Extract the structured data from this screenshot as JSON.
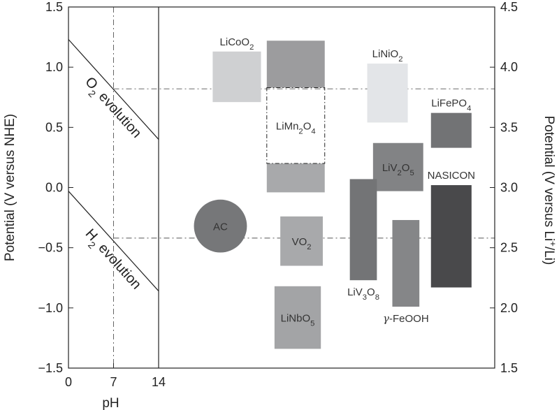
{
  "chart_data": {
    "type": "range_bar",
    "left_axis": {
      "label": "Potential (V versus NHE)",
      "range": [
        -1.5,
        1.5
      ],
      "ticks": [
        "−1.5",
        "−1.0",
        "−0.5",
        "0.0",
        "0.5",
        "1.0",
        "1.5"
      ],
      "tick_values": [
        -1.5,
        -1.0,
        -0.5,
        0.0,
        0.5,
        1.0,
        1.5
      ]
    },
    "right_axis": {
      "label_parts": [
        "Potential (V versus Li",
        "+",
        "/Li)"
      ],
      "range": [
        1.5,
        4.5
      ],
      "ticks": [
        "1.5",
        "2.0",
        "2.5",
        "3.0",
        "3.5",
        "4.0",
        "4.5"
      ],
      "tick_values": [
        1.5,
        2.0,
        2.5,
        3.0,
        3.5,
        4.0,
        4.5
      ]
    },
    "x_axis": {
      "label": "pH",
      "range": [
        0,
        14
      ],
      "ticks": [
        "0",
        "7",
        "14"
      ],
      "tick_values": [
        0,
        7,
        14
      ]
    },
    "reference_lines": {
      "pH_neutral": 7,
      "o2_evolution_potential_at_pH7": 0.82,
      "h2_evolution_potential_at_pH7": -0.42
    },
    "evolution_lines": [
      {
        "name": "O2 evolution",
        "label_parts": [
          "O",
          "2",
          " evolution"
        ],
        "from": [
          0,
          1.23
        ],
        "to": [
          14,
          0.4
        ]
      },
      {
        "name": "H2 evolution",
        "label_parts": [
          "H",
          "2",
          " evolution"
        ],
        "from": [
          0,
          -0.03
        ],
        "to": [
          14,
          -0.86
        ]
      }
    ],
    "materials": [
      {
        "name": "LiCoO2",
        "label_parts": [
          {
            "t": "LiCoO"
          },
          {
            "t": "2",
            "sub": true
          }
        ],
        "shape": "rect",
        "x_range": [
          2.8,
          5.3
        ],
        "y_range": [
          0.71,
          1.13
        ],
        "color": "#cfd0d2",
        "label_pos": "above"
      },
      {
        "name": "LiMn2O4 (upper)",
        "label_parts": [],
        "shape": "rect",
        "x_range": [
          5.6,
          8.6
        ],
        "y_range": [
          0.83,
          1.22
        ],
        "color": "#9c9c9e"
      },
      {
        "name": "LiMn2O4 (lower)",
        "label_parts": [],
        "shape": "rect",
        "x_range": [
          5.6,
          8.6
        ],
        "y_range": [
          -0.04,
          0.2
        ],
        "color": "#a8a9ab"
      },
      {
        "name": "LiMn2O4",
        "label_parts": [
          {
            "t": "LiMn"
          },
          {
            "t": "2",
            "sub": true
          },
          {
            "t": "O"
          },
          {
            "t": "4",
            "sub": true
          }
        ],
        "shape": "dashbox",
        "x_range": [
          5.6,
          8.6
        ],
        "y_range": [
          0.2,
          0.83
        ],
        "label_pos": "center"
      },
      {
        "name": "LiNiO2",
        "label_parts": [
          {
            "t": "LiNiO"
          },
          {
            "t": "2",
            "sub": true
          }
        ],
        "shape": "rect",
        "x_range": [
          10.8,
          12.9
        ],
        "y_range": [
          0.54,
          1.03
        ],
        "color": "#e3e5e8",
        "label_pos": "above"
      },
      {
        "name": "LiFePO4",
        "label_parts": [
          {
            "t": "LiFePO"
          },
          {
            "t": "4",
            "sub": true
          }
        ],
        "shape": "rect",
        "x_range": [
          14.1,
          16.2
        ],
        "y_range": [
          0.33,
          0.62
        ],
        "color": "#727375",
        "label_pos": "above"
      },
      {
        "name": "LiV2O5",
        "label_parts": [
          {
            "t": "LiV"
          },
          {
            "t": "2",
            "sub": true
          },
          {
            "t": "O"
          },
          {
            "t": "5",
            "sub": true
          }
        ],
        "shape": "rect",
        "x_range": [
          11.1,
          13.7
        ],
        "y_range": [
          -0.03,
          0.37
        ],
        "color": "#828385",
        "label_pos": "center"
      },
      {
        "name": "NASICON",
        "label_parts": [
          {
            "t": "NASICON"
          }
        ],
        "shape": "rect",
        "x_range": [
          14.1,
          16.2
        ],
        "y_range": [
          -0.83,
          0.02
        ],
        "color": "#49494b",
        "label_pos": "above"
      },
      {
        "name": "AC",
        "label_parts": [
          {
            "t": "AC"
          }
        ],
        "shape": "circle",
        "center": [
          3.2,
          -0.32
        ],
        "radius_v": 0.22,
        "color": "#767779",
        "label_pos": "center"
      },
      {
        "name": "VO2",
        "label_parts": [
          {
            "t": "VO"
          },
          {
            "t": "2",
            "sub": true
          }
        ],
        "shape": "rect",
        "x_range": [
          6.3,
          8.5
        ],
        "y_range": [
          -0.65,
          -0.24
        ],
        "color": "#a8a9ab",
        "label_pos": "center"
      },
      {
        "name": "LiV3O8",
        "label_parts": [
          {
            "t": "LiV"
          },
          {
            "t": "3",
            "sub": true
          },
          {
            "t": "O"
          },
          {
            "t": "8",
            "sub": true
          }
        ],
        "shape": "rect",
        "x_range": [
          9.9,
          11.3
        ],
        "y_range": [
          -0.77,
          0.07
        ],
        "color": "#737476",
        "label_pos": "below"
      },
      {
        "name": "LiNbO5",
        "label_parts": [
          {
            "t": "LiNbO"
          },
          {
            "t": "5",
            "sub": true
          }
        ],
        "shape": "rect",
        "x_range": [
          6.0,
          8.4
        ],
        "y_range": [
          -1.34,
          -0.82
        ],
        "color": "#a3a4a6",
        "label_pos": "center"
      },
      {
        "name": "γ-FeOOH",
        "label_parts": [
          {
            "t": "γ",
            "italic": true
          },
          {
            "t": "-FeOOH"
          }
        ],
        "shape": "rect",
        "x_range": [
          12.1,
          13.5
        ],
        "y_range": [
          -0.99,
          -0.27
        ],
        "color": "#858688",
        "label_pos": "below"
      }
    ]
  }
}
